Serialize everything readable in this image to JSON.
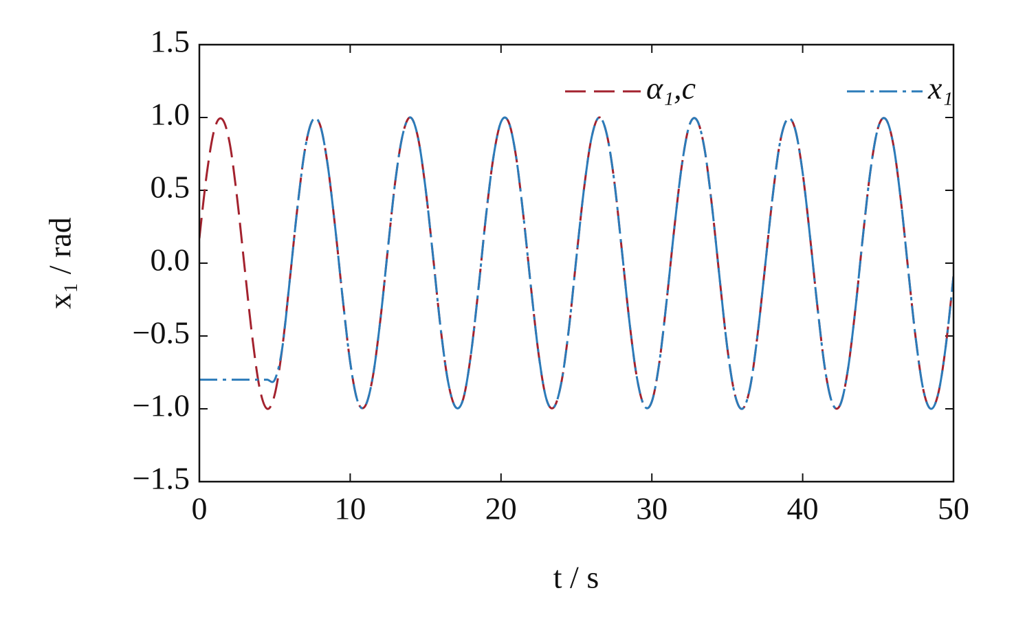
{
  "chart_data": {
    "type": "line",
    "xlabel": "t / s",
    "ylabel": "x₁ / rad",
    "xlim": [
      0,
      50
    ],
    "xticks": [
      0,
      10,
      20,
      30,
      40,
      50
    ],
    "ylim": [
      -1.5,
      1.5
    ],
    "yticks": [
      {
        "value": -1.5,
        "label": "−1.5"
      },
      {
        "value": -1,
        "label": "−1.0"
      },
      {
        "value": -0.5,
        "label": "−0.5"
      },
      {
        "value": 0,
        "label": "0.0"
      },
      {
        "value": 0.5,
        "label": "0.5"
      },
      {
        "value": 1,
        "label": "1.0"
      },
      {
        "value": 1.5,
        "label": "1.5"
      }
    ],
    "legend": "upper right",
    "x": [
      0,
      0.5,
      1,
      1.5,
      2,
      2.5,
      3,
      3.5,
      4,
      4.5,
      5,
      5.5,
      6,
      6.5,
      7,
      7.5,
      8,
      8.5,
      9,
      9.5,
      10,
      10.5,
      11,
      11.5,
      12,
      12.5,
      13,
      13.5,
      14,
      14.5,
      15,
      15.5,
      16,
      16.5,
      17,
      17.5,
      18,
      18.5,
      19,
      19.5,
      20,
      20.5,
      21,
      21.5,
      22,
      22.5,
      23,
      23.5,
      24,
      24.5,
      25,
      25.5,
      26,
      26.5,
      27,
      27.5,
      28,
      28.5,
      29,
      29.5,
      30,
      30.5,
      31,
      31.5,
      32,
      32.5,
      33,
      33.5,
      34,
      34.5,
      35,
      35.5,
      36,
      36.5,
      37,
      37.5,
      38,
      38.5,
      39,
      39.5,
      40,
      40.5,
      41,
      41.5,
      42,
      42.5,
      43,
      43.5,
      44,
      44.5,
      45,
      45.5,
      46,
      46.5,
      47,
      47.5,
      48,
      48.5,
      49,
      49.5,
      50
    ],
    "series": [
      {
        "name": "α₁,c",
        "color": "#a3222e",
        "style": "dashed",
        "values": [
          0.17,
          0.62,
          0.92,
          0.99,
          0.83,
          0.45,
          -0.03,
          -0.5,
          -0.86,
          -1,
          -0.9,
          -0.58,
          -0.11,
          0.38,
          0.78,
          0.98,
          0.95,
          0.68,
          0.25,
          -0.24,
          -0.68,
          -0.95,
          -0.98,
          -0.78,
          -0.39,
          0.1,
          0.57,
          0.89,
          1,
          0.86,
          0.51,
          0.04,
          -0.45,
          -0.82,
          -0.99,
          -0.93,
          -0.63,
          -0.18,
          0.32,
          0.73,
          0.97,
          0.97,
          0.73,
          0.31,
          -0.18,
          -0.63,
          -0.93,
          -0.99,
          -0.82,
          -0.45,
          0.04,
          0.51,
          0.86,
          1,
          0.89,
          0.57,
          0.1,
          -0.39,
          -0.78,
          -0.98,
          -0.95,
          -0.68,
          -0.24,
          0.25,
          0.68,
          0.95,
          0.98,
          0.78,
          0.38,
          -0.11,
          -0.58,
          -0.9,
          -1,
          -0.86,
          -0.5,
          -0.03,
          0.45,
          0.83,
          0.99,
          0.92,
          0.62,
          0.17,
          -0.32,
          -0.74,
          -0.97,
          -0.97,
          -0.73,
          -0.31,
          0.19,
          0.64,
          0.93,
          0.99,
          0.82,
          0.44,
          -0.05,
          -0.52,
          -0.87,
          -1,
          -0.89,
          -0.56,
          -0.09
        ]
      },
      {
        "name": "x₁",
        "color": "#2b7bb9",
        "style": "dashdot",
        "values": [
          -0.8,
          -0.8,
          -0.8,
          -0.8,
          -0.8,
          -0.8,
          -0.8,
          -0.8,
          -0.8,
          -0.8,
          -0.8,
          -0.58,
          -0.11,
          0.38,
          0.78,
          0.98,
          0.95,
          0.68,
          0.25,
          -0.24,
          -0.68,
          -0.95,
          -0.98,
          -0.78,
          -0.39,
          0.1,
          0.57,
          0.89,
          1,
          0.86,
          0.51,
          0.04,
          -0.45,
          -0.82,
          -0.99,
          -0.93,
          -0.63,
          -0.18,
          0.32,
          0.73,
          0.97,
          0.97,
          0.73,
          0.31,
          -0.18,
          -0.63,
          -0.93,
          -0.99,
          -0.82,
          -0.45,
          0.04,
          0.51,
          0.86,
          1,
          0.89,
          0.57,
          0.1,
          -0.39,
          -0.78,
          -0.98,
          -0.95,
          -0.68,
          -0.24,
          0.25,
          0.68,
          0.95,
          0.98,
          0.78,
          0.38,
          -0.11,
          -0.58,
          -0.9,
          -1,
          -0.86,
          -0.5,
          -0.03,
          0.45,
          0.83,
          0.99,
          0.92,
          0.62,
          0.17,
          -0.32,
          -0.74,
          -0.97,
          -0.97,
          -0.73,
          -0.31,
          0.19,
          0.64,
          0.93,
          0.99,
          0.82,
          0.44,
          -0.05,
          -0.52,
          -0.87,
          -1,
          -0.89,
          -0.56,
          -0.09
        ]
      }
    ]
  }
}
